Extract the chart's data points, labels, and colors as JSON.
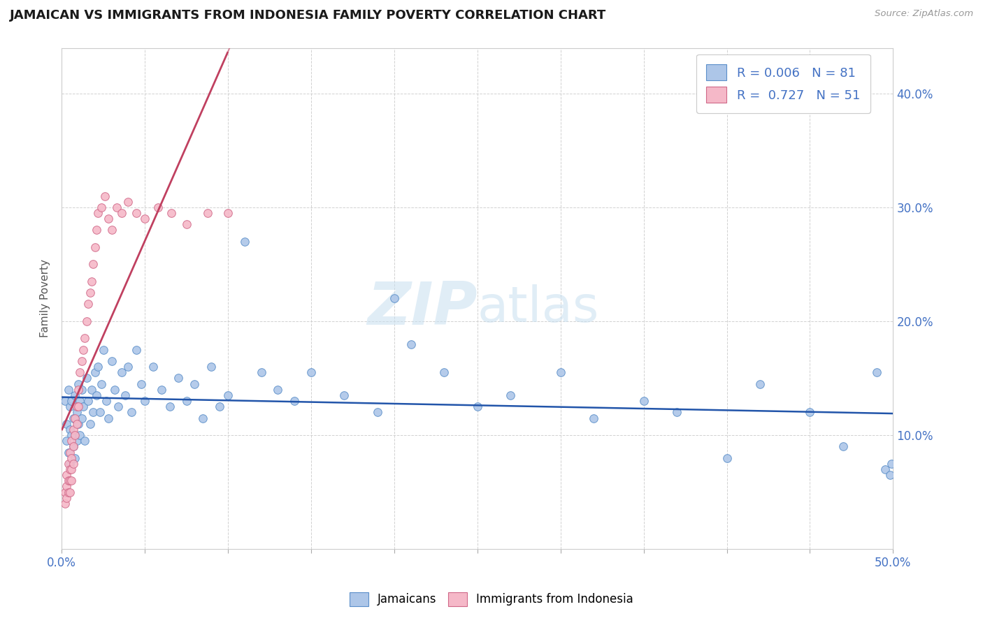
{
  "title": "JAMAICAN VS IMMIGRANTS FROM INDONESIA FAMILY POVERTY CORRELATION CHART",
  "source": "Source: ZipAtlas.com",
  "ylabel": "Family Poverty",
  "xlim": [
    0.0,
    0.5
  ],
  "ylim": [
    0.0,
    0.44
  ],
  "blue_scatter_color": "#adc6e8",
  "blue_edge_color": "#5b8fc9",
  "pink_scatter_color": "#f5b8c8",
  "pink_edge_color": "#d06888",
  "line_blue_color": "#2255aa",
  "line_pink_color": "#c04060",
  "legend_text_color": "#4472c4",
  "axis_label_color": "#4472c4",
  "grid_color": "#cccccc",
  "title_color": "#1a1a1a",
  "source_color": "#999999",
  "r1": 0.006,
  "n1": 81,
  "r2": 0.727,
  "n2": 51,
  "jam_x": [
    0.002,
    0.003,
    0.003,
    0.004,
    0.004,
    0.005,
    0.005,
    0.005,
    0.006,
    0.006,
    0.007,
    0.007,
    0.008,
    0.008,
    0.009,
    0.009,
    0.01,
    0.01,
    0.011,
    0.011,
    0.012,
    0.012,
    0.013,
    0.014,
    0.015,
    0.016,
    0.017,
    0.018,
    0.019,
    0.02,
    0.021,
    0.022,
    0.023,
    0.024,
    0.025,
    0.027,
    0.028,
    0.03,
    0.032,
    0.034,
    0.036,
    0.038,
    0.04,
    0.042,
    0.045,
    0.048,
    0.05,
    0.055,
    0.06,
    0.065,
    0.07,
    0.075,
    0.08,
    0.085,
    0.09,
    0.095,
    0.1,
    0.11,
    0.12,
    0.13,
    0.14,
    0.15,
    0.17,
    0.19,
    0.2,
    0.21,
    0.23,
    0.25,
    0.27,
    0.3,
    0.32,
    0.35,
    0.37,
    0.4,
    0.42,
    0.45,
    0.47,
    0.49,
    0.495,
    0.498,
    0.499
  ],
  "jam_y": [
    0.13,
    0.11,
    0.095,
    0.14,
    0.085,
    0.125,
    0.105,
    0.075,
    0.13,
    0.1,
    0.115,
    0.09,
    0.135,
    0.08,
    0.12,
    0.095,
    0.145,
    0.11,
    0.13,
    0.1,
    0.14,
    0.115,
    0.125,
    0.095,
    0.15,
    0.13,
    0.11,
    0.14,
    0.12,
    0.155,
    0.135,
    0.16,
    0.12,
    0.145,
    0.175,
    0.13,
    0.115,
    0.165,
    0.14,
    0.125,
    0.155,
    0.135,
    0.16,
    0.12,
    0.175,
    0.145,
    0.13,
    0.16,
    0.14,
    0.125,
    0.15,
    0.13,
    0.145,
    0.115,
    0.16,
    0.125,
    0.135,
    0.27,
    0.155,
    0.14,
    0.13,
    0.155,
    0.135,
    0.12,
    0.22,
    0.18,
    0.155,
    0.125,
    0.135,
    0.155,
    0.115,
    0.13,
    0.12,
    0.08,
    0.145,
    0.12,
    0.09,
    0.155,
    0.07,
    0.065,
    0.075
  ],
  "indo_x": [
    0.002,
    0.002,
    0.003,
    0.003,
    0.003,
    0.004,
    0.004,
    0.004,
    0.005,
    0.005,
    0.005,
    0.005,
    0.006,
    0.006,
    0.006,
    0.006,
    0.007,
    0.007,
    0.007,
    0.008,
    0.008,
    0.009,
    0.009,
    0.01,
    0.01,
    0.011,
    0.012,
    0.013,
    0.014,
    0.015,
    0.016,
    0.017,
    0.018,
    0.019,
    0.02,
    0.021,
    0.022,
    0.024,
    0.026,
    0.028,
    0.03,
    0.033,
    0.036,
    0.04,
    0.045,
    0.05,
    0.058,
    0.066,
    0.075,
    0.088,
    0.1
  ],
  "indo_y": [
    0.05,
    0.04,
    0.065,
    0.055,
    0.045,
    0.075,
    0.06,
    0.05,
    0.085,
    0.07,
    0.06,
    0.05,
    0.095,
    0.08,
    0.07,
    0.06,
    0.105,
    0.09,
    0.075,
    0.115,
    0.1,
    0.125,
    0.11,
    0.14,
    0.125,
    0.155,
    0.165,
    0.175,
    0.185,
    0.2,
    0.215,
    0.225,
    0.235,
    0.25,
    0.265,
    0.28,
    0.295,
    0.3,
    0.31,
    0.29,
    0.28,
    0.3,
    0.295,
    0.305,
    0.295,
    0.29,
    0.3,
    0.295,
    0.285,
    0.295,
    0.295
  ]
}
